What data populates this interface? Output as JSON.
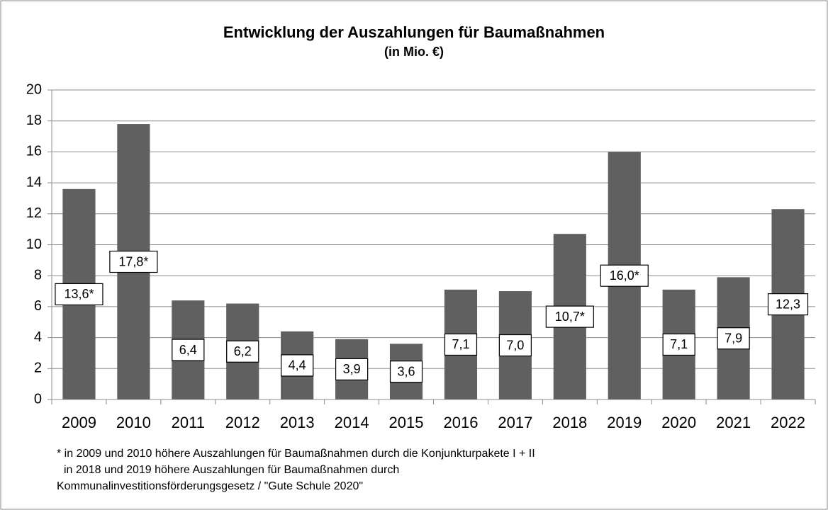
{
  "chart_data": {
    "type": "bar",
    "title": "Entwicklung der Auszahlungen für Baumaßnahmen",
    "subtitle": "(in Mio. €)",
    "categories": [
      "2009",
      "2010",
      "2011",
      "2012",
      "2013",
      "2014",
      "2015",
      "2016",
      "2017",
      "2018",
      "2019",
      "2020",
      "2021",
      "2022"
    ],
    "values": [
      13.6,
      17.8,
      6.4,
      6.2,
      4.4,
      3.9,
      3.6,
      7.1,
      7.0,
      10.7,
      16.0,
      7.1,
      7.9,
      12.3
    ],
    "value_labels": [
      "13,6*",
      "17,8*",
      "6,4",
      "6,2",
      "4,4",
      "3,9",
      "3,6",
      "7,1",
      "7,0",
      "10,7*",
      "16,0*",
      "7,1",
      "7,9",
      "12,3"
    ],
    "color": "#606060",
    "ylim": [
      0,
      20
    ],
    "yticks": [
      0,
      2,
      4,
      6,
      8,
      10,
      12,
      14,
      16,
      18,
      20
    ],
    "grid": true,
    "footnote": [
      "* in 2009 und 2010 höhere Auszahlungen für Baumaßnahmen durch die Konjunkturpakete I + II",
      "in 2018 und 2019 höhere Auszahlungen für Baumaßnahmen durch",
      "Kommunalinvestitionsförderungsgesetz / \"Gute Schule 2020\""
    ]
  }
}
